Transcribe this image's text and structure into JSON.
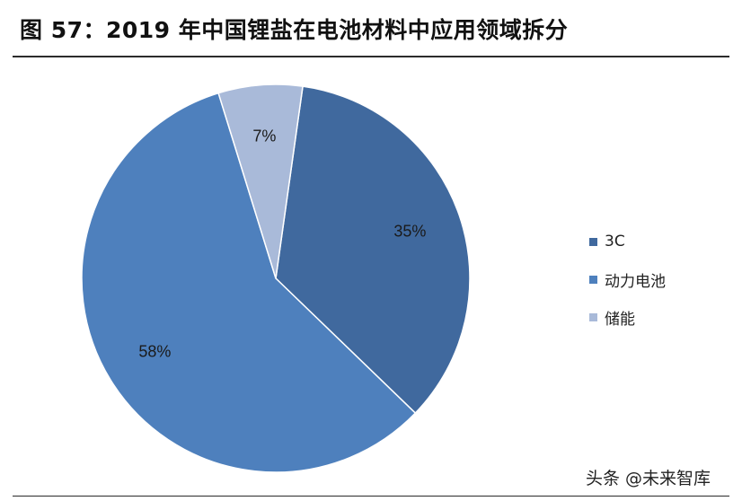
{
  "figure": {
    "title": "图 57：2019 年中国锂盐在电池材料中应用领域拆分"
  },
  "chart_data": {
    "type": "pie",
    "title": "",
    "slices": [
      {
        "label": "3C",
        "value": 35,
        "display": "35%",
        "color": "#40699e"
      },
      {
        "label": "动力电池",
        "value": 58,
        "display": "58%",
        "color": "#4e80bd"
      },
      {
        "label": "储能",
        "value": 7,
        "display": "7%",
        "color": "#a9bad9"
      }
    ],
    "start_angle_deg": 8,
    "direction": "clockwise",
    "legend_position": "right"
  },
  "watermark": {
    "text": "头条 @未来智库"
  }
}
